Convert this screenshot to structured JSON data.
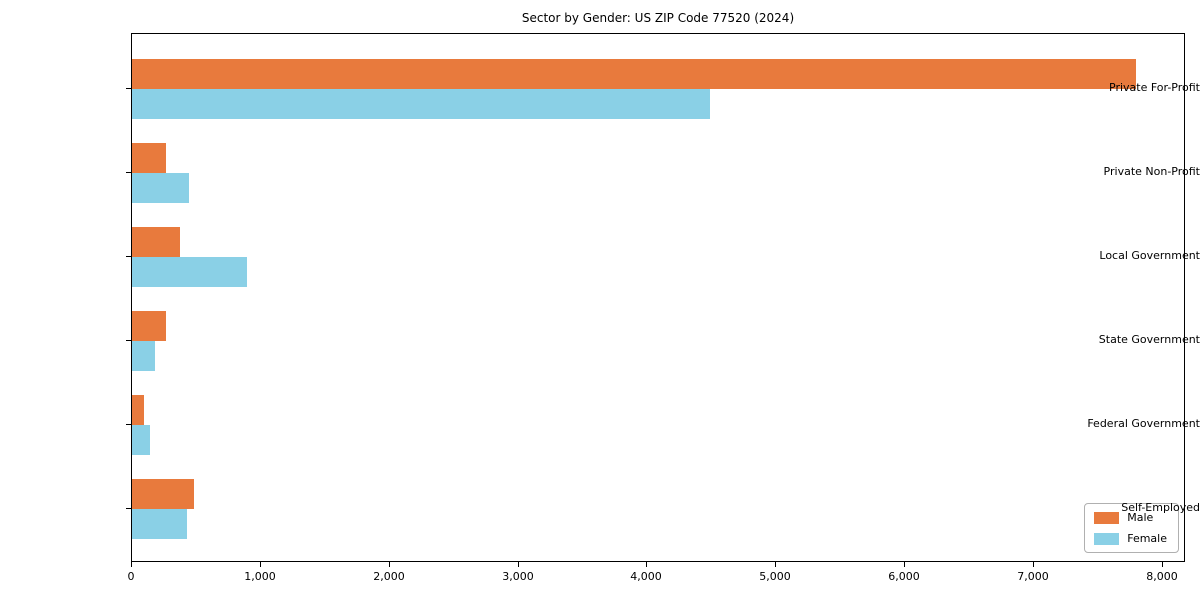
{
  "title": "Sector by Gender: US ZIP Code 77520 (2024)",
  "chart_data": {
    "type": "bar",
    "orientation": "horizontal",
    "title": "Sector by Gender: US ZIP Code 77520 (2024)",
    "categories": [
      "Private For-Profit",
      "Private Non-Profit",
      "Local Government",
      "State Government",
      "Federal Government",
      "Self-Employed"
    ],
    "series": [
      {
        "name": "Male",
        "color": "#E87A3D",
        "values": [
          7790,
          265,
          370,
          265,
          90,
          480
        ]
      },
      {
        "name": "Female",
        "color": "#8AD0E6",
        "values": [
          4485,
          445,
          890,
          180,
          140,
          430
        ]
      }
    ],
    "xlabel": "",
    "ylabel": "",
    "xlim": [
      0,
      8180
    ],
    "xticks": [
      0,
      1000,
      2000,
      3000,
      4000,
      5000,
      6000,
      7000,
      8000
    ],
    "xtick_labels": [
      "0",
      "1,000",
      "2,000",
      "3,000",
      "4,000",
      "5,000",
      "6,000",
      "7,000",
      "8,000"
    ],
    "grid": false,
    "legend": {
      "position": "lower right",
      "entries": [
        "Male",
        "Female"
      ]
    }
  }
}
